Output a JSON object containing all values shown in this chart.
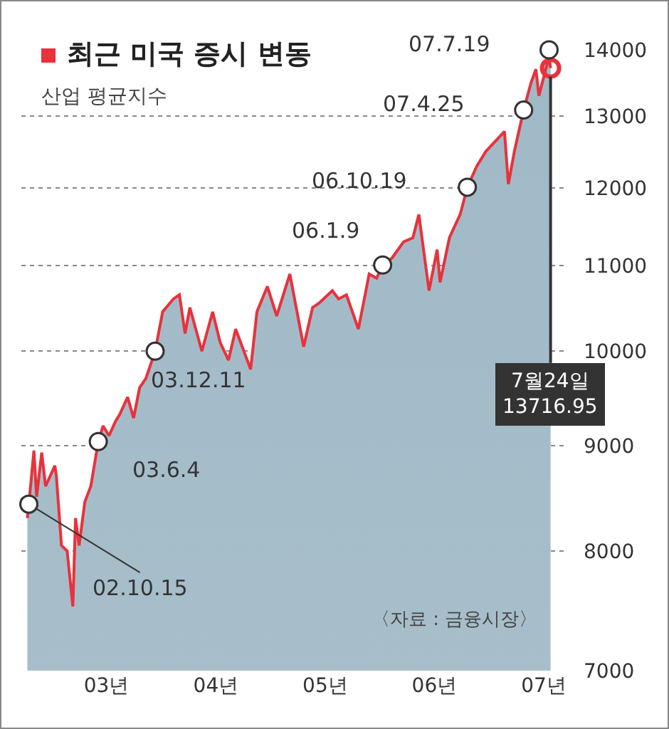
{
  "chart_data": {
    "type": "area",
    "title": "최근 미국 증시 변동",
    "subtitle": "산업 평균지수",
    "series": [
      {
        "color": "#e8323c",
        "x": [
          "2002-10-10",
          "2002-10-15",
          "2002-11-01",
          "2002-11-10",
          "2002-11-27",
          "2002-12-10",
          "2003-01-10",
          "2003-01-15",
          "2003-02-01",
          "2003-02-20",
          "2003-03-11",
          "2003-03-20",
          "2003-04-01",
          "2003-04-20",
          "2003-05-10",
          "2003-06-04",
          "2003-06-20",
          "2003-07-10",
          "2003-08-01",
          "2003-08-15",
          "2003-09-10",
          "2003-09-30",
          "2003-10-20",
          "2003-11-10",
          "2003-12-11",
          "2004-01-05",
          "2004-02-10",
          "2004-03-01",
          "2004-03-20",
          "2004-04-05",
          "2004-05-15",
          "2004-06-20",
          "2004-07-15",
          "2004-08-12",
          "2004-09-05",
          "2004-10-25",
          "2004-11-15",
          "2004-12-20",
          "2005-01-20",
          "2005-03-05",
          "2005-04-20",
          "2005-05-20",
          "2005-06-10",
          "2005-07-25",
          "2005-08-15",
          "2005-09-10",
          "2005-10-20",
          "2005-11-25",
          "2005-12-20",
          "2006-01-09",
          "2006-02-10",
          "2006-03-20",
          "2006-04-20",
          "2006-05-10",
          "2006-06-13",
          "2006-07-10",
          "2006-07-20",
          "2006-08-20",
          "2006-09-25",
          "2006-10-19",
          "2006-11-20",
          "2006-12-20",
          "2007-02-20",
          "2007-03-05",
          "2007-03-25",
          "2007-04-25",
          "2007-05-20",
          "2007-06-05",
          "2007-06-15",
          "2007-07-19",
          "2007-07-24"
        ],
        "values": [
          8300,
          8430,
          8950,
          8500,
          8930,
          8600,
          8800,
          8700,
          8050,
          8000,
          7520,
          8300,
          8050,
          8450,
          8600,
          9040,
          9200,
          9100,
          9250,
          9320,
          9500,
          9280,
          9600,
          9700,
          10000,
          10450,
          10600,
          10650,
          10200,
          10500,
          10000,
          10450,
          10100,
          9900,
          10250,
          9800,
          10450,
          10750,
          10400,
          10900,
          10050,
          10500,
          10550,
          10700,
          10600,
          10650,
          10250,
          10900,
          10850,
          11010,
          11100,
          11300,
          11350,
          11650,
          10700,
          11200,
          10800,
          11350,
          11650,
          12010,
          12300,
          12500,
          12780,
          12050,
          12500,
          13090,
          13500,
          13700,
          13300,
          13900,
          13716.95
        ]
      }
    ],
    "xlim": [
      "2002-09-20",
      "2007-09-20"
    ],
    "xticks": [
      {
        "value": "2003-07-01",
        "label": "03년"
      },
      {
        "value": "2004-07-01",
        "label": "04년"
      },
      {
        "value": "2005-07-01",
        "label": "05년"
      },
      {
        "value": "2006-07-01",
        "label": "06년"
      },
      {
        "value": "2007-07-01",
        "label": "07년"
      }
    ],
    "ylim": [
      7000,
      14000
    ],
    "yticks": [
      7000,
      8000,
      9000,
      10000,
      11000,
      12000,
      13000,
      14000
    ],
    "log": true,
    "grid": "y",
    "annotations": [
      {
        "text": "02.10.15",
        "x": "2002-10-15",
        "y": 8430
      },
      {
        "text": "03.6.4",
        "x": "2003-06-04",
        "y": 9040
      },
      {
        "text": "03.12.11",
        "x": "2003-12-11",
        "y": 10000
      },
      {
        "text": "06.1.9",
        "x": "2006-01-09",
        "y": 11010
      },
      {
        "text": "06.10.19",
        "x": "2006-10-19",
        "y": 12010
      },
      {
        "text": "07.4.25",
        "x": "2007-04-25",
        "y": 13090
      },
      {
        "text": "07.7.19",
        "x": "2007-07-19",
        "y": 14000
      },
      {
        "text": "7월24일\n13716.95",
        "x": "2007-07-24",
        "y": 13716.95
      },
      "〈자료 : 금융시장〉"
    ]
  }
}
